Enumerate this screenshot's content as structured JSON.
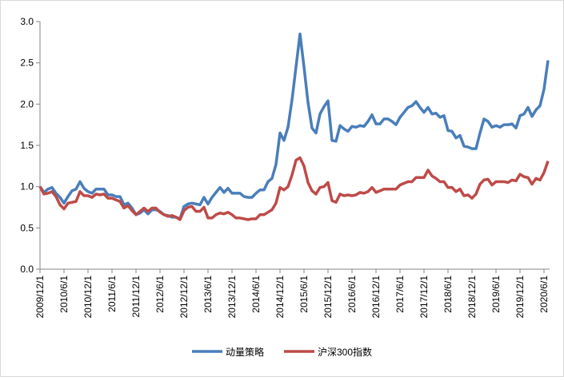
{
  "chart_data": {
    "type": "line",
    "categories": [
      "2009/12/1",
      null,
      null,
      null,
      null,
      null,
      "2010/6/1",
      null,
      null,
      null,
      null,
      null,
      "2010/12/1",
      null,
      null,
      null,
      null,
      null,
      "2011/6/1",
      null,
      null,
      null,
      null,
      null,
      "2011/12/1",
      null,
      null,
      null,
      null,
      null,
      "2012/6/1",
      null,
      null,
      null,
      null,
      null,
      "2012/12/1",
      null,
      null,
      null,
      null,
      null,
      "2013/6/1",
      null,
      null,
      null,
      null,
      null,
      "2013/12/1",
      null,
      null,
      null,
      null,
      null,
      "2014/6/1",
      null,
      null,
      null,
      null,
      null,
      "2014/12/1",
      null,
      null,
      null,
      null,
      null,
      "2015/6/1",
      null,
      null,
      null,
      null,
      null,
      "2015/12/1",
      null,
      null,
      null,
      null,
      null,
      "2016/6/1",
      null,
      null,
      null,
      null,
      null,
      "2016/12/1",
      null,
      null,
      null,
      null,
      null,
      "2017/6/1",
      null,
      null,
      null,
      null,
      null,
      "2017/12/1",
      null,
      null,
      null,
      null,
      null,
      "2018/6/1",
      null,
      null,
      null,
      null,
      null,
      "2018/12/1",
      null,
      null,
      null,
      null,
      null,
      "2019/6/1",
      null,
      null,
      null,
      null,
      null,
      "2019/12/1",
      null,
      null,
      null,
      null,
      null,
      "2020/6/1",
      null
    ],
    "series": [
      {
        "name": "动量策略",
        "color": "#4a7ebb",
        "values": [
          1.0,
          0.93,
          0.97,
          0.99,
          0.92,
          0.87,
          0.8,
          0.88,
          0.95,
          0.97,
          1.06,
          0.98,
          0.94,
          0.92,
          0.97,
          0.97,
          0.97,
          0.9,
          0.9,
          0.88,
          0.88,
          0.78,
          0.8,
          0.74,
          0.66,
          0.68,
          0.72,
          0.67,
          0.72,
          0.72,
          0.7,
          0.66,
          0.65,
          0.63,
          0.63,
          0.61,
          0.76,
          0.79,
          0.8,
          0.79,
          0.78,
          0.87,
          0.79,
          0.87,
          0.93,
          0.99,
          0.93,
          0.98,
          0.92,
          0.92,
          0.92,
          0.88,
          0.87,
          0.87,
          0.92,
          0.96,
          0.96,
          1.06,
          1.1,
          1.27,
          1.65,
          1.56,
          1.72,
          2.05,
          2.45,
          2.85,
          2.45,
          2.02,
          1.71,
          1.65,
          1.88,
          1.97,
          2.04,
          1.56,
          1.55,
          1.74,
          1.7,
          1.67,
          1.73,
          1.72,
          1.74,
          1.73,
          1.79,
          1.87,
          1.76,
          1.76,
          1.82,
          1.82,
          1.79,
          1.75,
          1.84,
          1.9,
          1.96,
          1.98,
          2.03,
          1.96,
          1.9,
          1.96,
          1.88,
          1.89,
          1.84,
          1.86,
          1.68,
          1.67,
          1.59,
          1.62,
          1.49,
          1.48,
          1.46,
          1.46,
          1.65,
          1.82,
          1.79,
          1.72,
          1.74,
          1.72,
          1.75,
          1.75,
          1.76,
          1.71,
          1.86,
          1.88,
          1.96,
          1.85,
          1.93,
          1.98,
          2.18,
          2.53
        ]
      },
      {
        "name": "沪深300指数",
        "color": "#be4b48",
        "values": [
          1.0,
          0.91,
          0.92,
          0.94,
          0.88,
          0.78,
          0.73,
          0.8,
          0.81,
          0.82,
          0.94,
          0.89,
          0.89,
          0.87,
          0.91,
          0.9,
          0.91,
          0.86,
          0.86,
          0.84,
          0.82,
          0.74,
          0.77,
          0.71,
          0.66,
          0.7,
          0.74,
          0.7,
          0.74,
          0.74,
          0.69,
          0.66,
          0.64,
          0.65,
          0.63,
          0.6,
          0.71,
          0.75,
          0.76,
          0.7,
          0.7,
          0.75,
          0.62,
          0.62,
          0.66,
          0.68,
          0.67,
          0.69,
          0.66,
          0.62,
          0.62,
          0.61,
          0.6,
          0.61,
          0.61,
          0.66,
          0.66,
          0.69,
          0.72,
          0.8,
          0.99,
          0.96,
          1.0,
          1.14,
          1.32,
          1.35,
          1.25,
          1.05,
          0.95,
          0.91,
          0.99,
          1.0,
          1.05,
          0.83,
          0.81,
          0.91,
          0.89,
          0.9,
          0.89,
          0.9,
          0.93,
          0.92,
          0.94,
          0.99,
          0.93,
          0.95,
          0.97,
          0.97,
          0.97,
          0.97,
          1.02,
          1.04,
          1.06,
          1.06,
          1.11,
          1.11,
          1.11,
          1.2,
          1.13,
          1.1,
          1.06,
          1.06,
          0.99,
          0.99,
          0.94,
          0.97,
          0.89,
          0.9,
          0.86,
          0.91,
          1.03,
          1.08,
          1.09,
          1.02,
          1.06,
          1.06,
          1.06,
          1.05,
          1.08,
          1.07,
          1.15,
          1.12,
          1.11,
          1.03,
          1.1,
          1.08,
          1.17,
          1.31
        ]
      }
    ],
    "ylim": [
      0,
      3
    ],
    "yticks": [
      {
        "value": 0,
        "label": "0.0"
      },
      0.5,
      {
        "value": 1,
        "label": "1.0"
      },
      1.5,
      {
        "value": 2,
        "label": "2.0"
      },
      2.5,
      {
        "value": 3,
        "label": "3.0"
      }
    ],
    "grid": false,
    "legend": "bottom"
  }
}
